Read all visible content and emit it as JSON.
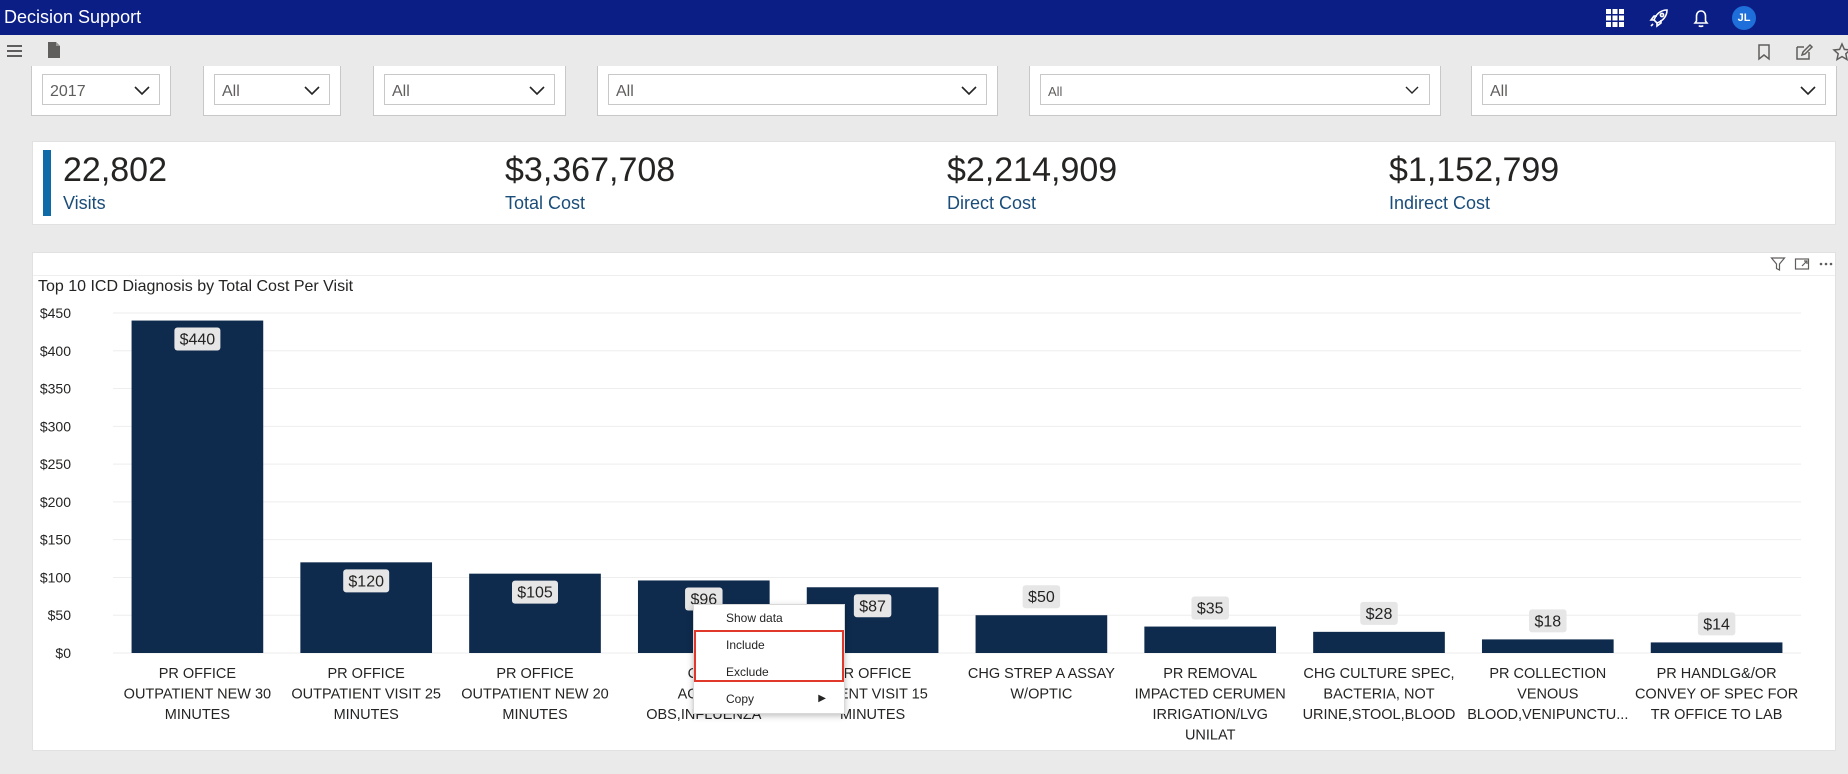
{
  "app": {
    "title": "Decision Support",
    "avatar_initials": "JL"
  },
  "topbar_icons": [
    "app-grid-icon",
    "rocket-icon",
    "bell-icon"
  ],
  "toolbar": {
    "left_icons": [
      "hamburger-menu-icon",
      "page-icon"
    ],
    "right_icons": [
      "bookmark-icon",
      "edit-icon",
      "star-icon"
    ]
  },
  "slicers": [
    {
      "value": "2017"
    },
    {
      "value": "All"
    },
    {
      "value": "All"
    },
    {
      "value": "All"
    },
    {
      "value": "All"
    },
    {
      "value": "All"
    }
  ],
  "kpis": [
    {
      "value": "22,802",
      "label": "Visits"
    },
    {
      "value": "$3,367,708",
      "label": "Total Cost"
    },
    {
      "value": "$2,214,909",
      "label": "Direct Cost"
    },
    {
      "value": "$1,152,799",
      "label": "Indirect Cost"
    }
  ],
  "visual_header_icons": [
    "filter-icon",
    "focus-mode-icon",
    "more-options-icon"
  ],
  "chart_data": {
    "type": "bar",
    "title": "Top 10 ICD Diagnosis by Total Cost Per Visit",
    "xlabel": "",
    "ylabel": "",
    "ylim": [
      0,
      450
    ],
    "yticks": [
      "$0",
      "$50",
      "$100",
      "$150",
      "$200",
      "$250",
      "$300",
      "$350",
      "$400",
      "$450"
    ],
    "grid": true,
    "color": "#0e2a4d",
    "categories": [
      [
        "PR OFFICE",
        "OUTPATIENT NEW 30",
        "MINUTES"
      ],
      [
        "PR OFFICE",
        "OUTPATIENT VISIT 25",
        "MINUTES"
      ],
      [
        "PR OFFICE",
        "OUTPATIENT NEW 20",
        "MINUTES"
      ],
      [
        "CHG",
        "AGENT,",
        "OBS,INFLUENZA"
      ],
      [
        "PR OFFICE",
        "ATIENT VISIT 15",
        "MINUTES"
      ],
      [
        "CHG STREP A ASSAY",
        "W/OPTIC"
      ],
      [
        "PR REMOVAL",
        "IMPACTED CERUMEN",
        "IRRIGATION/LVG",
        "UNILAT"
      ],
      [
        "CHG CULTURE SPEC,",
        "BACTERIA, NOT",
        "URINE,STOOL,BLOOD"
      ],
      [
        "PR COLLECTION",
        "VENOUS",
        "BLOOD,VENIPUNCTU..."
      ],
      [
        "PR HANDLG&/OR",
        "CONVEY OF SPEC FOR",
        "TR OFFICE TO LAB"
      ]
    ],
    "values": [
      440,
      120,
      105,
      96,
      87,
      50,
      35,
      28,
      18,
      14
    ],
    "data_labels": [
      "$440",
      "$120",
      "$105",
      "$96",
      "$87",
      "$50",
      "$35",
      "$28",
      "$18",
      "$14"
    ]
  },
  "context_menu": {
    "items": [
      {
        "label": "Show data"
      },
      {
        "label": "Include"
      },
      {
        "label": "Exclude"
      },
      {
        "label": "Copy",
        "submenu": true
      }
    ],
    "highlight_color": "#e0392b"
  }
}
